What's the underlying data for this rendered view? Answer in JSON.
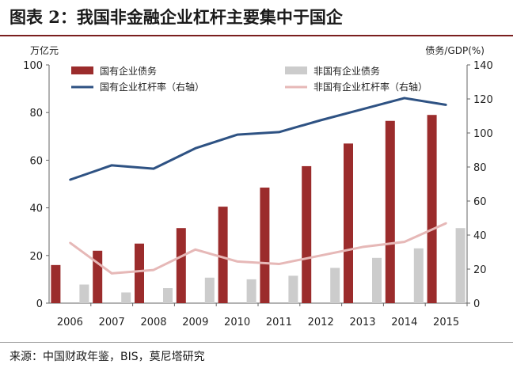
{
  "title": "图表 2：我国非金融企业杠杆主要集中于国企",
  "source": "来源：中国财政年鉴，BIS，莫尼塔研究",
  "chart_data": {
    "type": "bar",
    "categories": [
      "2006",
      "2007",
      "2008",
      "2009",
      "2010",
      "2011",
      "2012",
      "2013",
      "2014",
      "2015"
    ],
    "left_axis": {
      "label": "万亿元",
      "ylim": [
        0,
        100
      ],
      "ticks": [
        0,
        20,
        40,
        60,
        80,
        100
      ]
    },
    "right_axis": {
      "label": "债务/GDP(%)",
      "ylim": [
        0,
        140
      ],
      "ticks": [
        0,
        20,
        40,
        60,
        80,
        100,
        120,
        140
      ]
    },
    "series": [
      {
        "name": "国有企业债务",
        "kind": "bar",
        "axis": "left",
        "color": "#9b2c2c",
        "values": [
          16,
          22,
          25,
          31.5,
          40.5,
          48.5,
          57.5,
          67,
          76.5,
          79
        ]
      },
      {
        "name": "非国有企业债务",
        "kind": "bar",
        "axis": "left",
        "color": "#cccccc",
        "values": [
          7.8,
          4.5,
          6.3,
          10.7,
          10,
          11.5,
          14.8,
          19,
          23,
          31.5
        ]
      },
      {
        "name": "国有企业杠杆率（右轴）",
        "kind": "line",
        "axis": "right",
        "color": "#2e5283",
        "values": [
          72.5,
          81,
          79,
          91,
          99,
          100.5,
          107.5,
          114,
          120.5,
          116.5
        ]
      },
      {
        "name": "非国有企业杠杆率（右轴）",
        "kind": "line",
        "axis": "right",
        "color": "#e6b8b7",
        "values": [
          35.5,
          17.5,
          19.5,
          31.5,
          24.5,
          23,
          28,
          33,
          36,
          47
        ]
      }
    ],
    "legend_position": "top-left",
    "grid": false
  }
}
